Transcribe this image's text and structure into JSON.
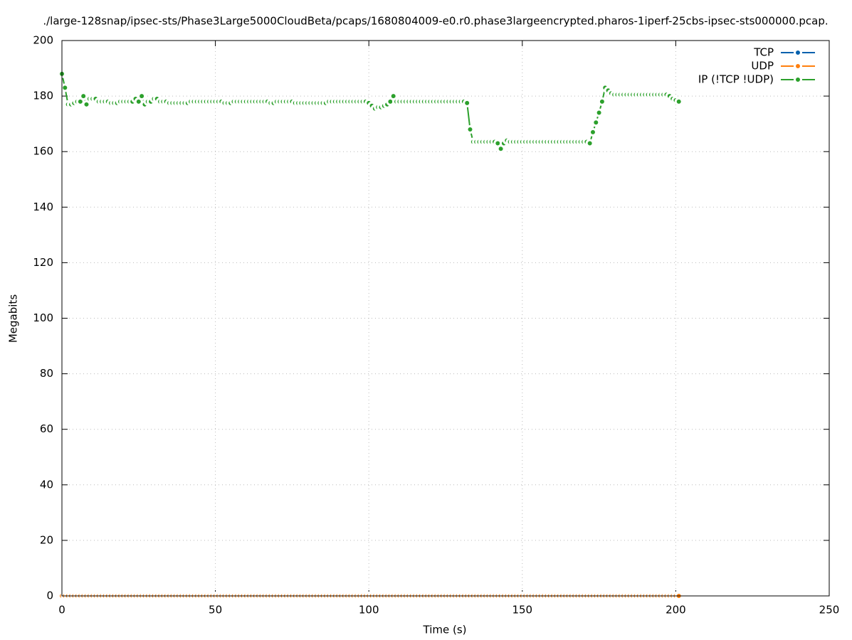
{
  "chart_data": {
    "type": "line",
    "title": "./large-128snap/ipsec-sts/Phase3Large5000CloudBeta/pcaps/1680804009-e0.r0.phase3largeencrypted.pharos-1iperf-25cbs-ipsec-sts000000.pcap.",
    "x_label": "Time (s)",
    "y_label": "Megabits",
    "xlim": [
      0,
      250
    ],
    "xticks": [
      0,
      50,
      100,
      150,
      200,
      250
    ],
    "ylim": [
      0,
      200
    ],
    "yticks": [
      0,
      20,
      40,
      60,
      80,
      100,
      120,
      140,
      160,
      180,
      200
    ],
    "grid": true,
    "legend": "top-right",
    "x": [
      0,
      1,
      2,
      3,
      4,
      5,
      6,
      7,
      8,
      9,
      10,
      11,
      12,
      13,
      14,
      15,
      16,
      17,
      18,
      19,
      20,
      21,
      22,
      23,
      24,
      25,
      26,
      27,
      28,
      29,
      30,
      31,
      32,
      33,
      34,
      35,
      36,
      37,
      38,
      39,
      40,
      41,
      42,
      43,
      44,
      45,
      46,
      47,
      48,
      49,
      50,
      51,
      52,
      53,
      54,
      55,
      56,
      57,
      58,
      59,
      60,
      61,
      62,
      63,
      64,
      65,
      66,
      67,
      68,
      69,
      70,
      71,
      72,
      73,
      74,
      75,
      76,
      77,
      78,
      79,
      80,
      81,
      82,
      83,
      84,
      85,
      86,
      87,
      88,
      89,
      90,
      91,
      92,
      93,
      94,
      95,
      96,
      97,
      98,
      99,
      100,
      101,
      102,
      103,
      104,
      105,
      106,
      107,
      108,
      109,
      110,
      111,
      112,
      113,
      114,
      115,
      116,
      117,
      118,
      119,
      120,
      121,
      122,
      123,
      124,
      125,
      126,
      127,
      128,
      129,
      130,
      131,
      132,
      133,
      134,
      135,
      136,
      137,
      138,
      139,
      140,
      141,
      142,
      143,
      144,
      145,
      146,
      147,
      148,
      149,
      150,
      151,
      152,
      153,
      154,
      155,
      156,
      157,
      158,
      159,
      160,
      161,
      162,
      163,
      164,
      165,
      166,
      167,
      168,
      169,
      170,
      171,
      172,
      173,
      174,
      175,
      176,
      177,
      178,
      179,
      180,
      181,
      182,
      183,
      184,
      185,
      186,
      187,
      188,
      189,
      190,
      191,
      192,
      193,
      194,
      195,
      196,
      197,
      198,
      199,
      200,
      201
    ],
    "series": [
      {
        "name": "TCP",
        "color": "#0060ad",
        "values": [
          0,
          0,
          0,
          0,
          0,
          0,
          0,
          0,
          0,
          0,
          0,
          0,
          0,
          0,
          0,
          0,
          0,
          0,
          0,
          0,
          0,
          0,
          0,
          0,
          0,
          0,
          0,
          0,
          0,
          0,
          0,
          0,
          0,
          0,
          0,
          0,
          0,
          0,
          0,
          0,
          0,
          0,
          0,
          0,
          0,
          0,
          0,
          0,
          0,
          0,
          0,
          0,
          0,
          0,
          0,
          0,
          0,
          0,
          0,
          0,
          0,
          0,
          0,
          0,
          0,
          0,
          0,
          0,
          0,
          0,
          0,
          0,
          0,
          0,
          0,
          0,
          0,
          0,
          0,
          0,
          0,
          0,
          0,
          0,
          0,
          0,
          0,
          0,
          0,
          0,
          0,
          0,
          0,
          0,
          0,
          0,
          0,
          0,
          0,
          0,
          0,
          0,
          0,
          0,
          0,
          0,
          0,
          0,
          0,
          0,
          0,
          0,
          0,
          0,
          0,
          0,
          0,
          0,
          0,
          0,
          0,
          0,
          0,
          0,
          0,
          0,
          0,
          0,
          0,
          0,
          0,
          0,
          0,
          0,
          0,
          0,
          0,
          0,
          0,
          0,
          0,
          0,
          0,
          0,
          0,
          0,
          0,
          0,
          0,
          0,
          0,
          0,
          0,
          0,
          0,
          0,
          0,
          0,
          0,
          0,
          0,
          0,
          0,
          0,
          0,
          0,
          0,
          0,
          0,
          0,
          0,
          0,
          0,
          0,
          0,
          0,
          0,
          0,
          0,
          0,
          0,
          0,
          0,
          0,
          0,
          0,
          0,
          0,
          0,
          0,
          0,
          0,
          0,
          0,
          0,
          0,
          0,
          0,
          0,
          0,
          0,
          0
        ]
      },
      {
        "name": "UDP",
        "color": "#ff7f0e",
        "values": [
          0,
          0,
          0,
          0,
          0,
          0,
          0,
          0,
          0,
          0,
          0,
          0,
          0,
          0,
          0,
          0,
          0,
          0,
          0,
          0,
          0,
          0,
          0,
          0,
          0,
          0,
          0,
          0,
          0,
          0,
          0,
          0,
          0,
          0,
          0,
          0,
          0,
          0,
          0,
          0,
          0,
          0,
          0,
          0,
          0,
          0,
          0,
          0,
          0,
          0,
          0,
          0,
          0,
          0,
          0,
          0,
          0,
          0,
          0,
          0,
          0,
          0,
          0,
          0,
          0,
          0,
          0,
          0,
          0,
          0,
          0,
          0,
          0,
          0,
          0,
          0,
          0,
          0,
          0,
          0,
          0,
          0,
          0,
          0,
          0,
          0,
          0,
          0,
          0,
          0,
          0,
          0,
          0,
          0,
          0,
          0,
          0,
          0,
          0,
          0,
          0,
          0,
          0,
          0,
          0,
          0,
          0,
          0,
          0,
          0,
          0,
          0,
          0,
          0,
          0,
          0,
          0,
          0,
          0,
          0,
          0,
          0,
          0,
          0,
          0,
          0,
          0,
          0,
          0,
          0,
          0,
          0,
          0,
          0,
          0,
          0,
          0,
          0,
          0,
          0,
          0,
          0,
          0,
          0,
          0,
          0,
          0,
          0,
          0,
          0,
          0,
          0,
          0,
          0,
          0,
          0,
          0,
          0,
          0,
          0,
          0,
          0,
          0,
          0,
          0,
          0,
          0,
          0,
          0,
          0,
          0,
          0,
          0,
          0,
          0,
          0,
          0,
          0,
          0,
          0,
          0,
          0,
          0,
          0,
          0,
          0,
          0,
          0,
          0,
          0,
          0,
          0,
          0,
          0,
          0,
          0,
          0,
          0,
          0,
          0,
          0,
          0
        ]
      },
      {
        "name": "IP (!TCP  !UDP)",
        "color": "#2ca02c",
        "values": [
          188,
          183,
          177,
          177,
          177.5,
          178,
          178,
          180,
          177,
          179,
          179,
          179,
          178,
          178,
          178,
          178,
          177.5,
          177.5,
          177.5,
          178,
          178,
          178,
          178,
          178,
          179,
          178,
          180,
          177,
          178,
          178,
          179,
          179,
          178,
          178,
          178,
          177.5,
          177.5,
          177.5,
          177.5,
          177.5,
          177.5,
          177.5,
          178,
          178,
          178,
          178,
          178,
          178,
          178,
          178,
          178,
          178,
          178,
          177.5,
          177.5,
          177.5,
          178,
          178,
          178,
          178,
          178,
          178,
          178,
          178,
          178,
          178,
          178,
          178,
          177.5,
          177.5,
          178,
          178,
          178,
          178,
          178,
          178,
          177.5,
          177.5,
          177.5,
          177.5,
          177.5,
          177.5,
          177.5,
          177.5,
          177.5,
          177.5,
          177.5,
          178,
          178,
          178,
          178,
          178,
          178,
          178,
          178,
          178,
          178,
          178,
          178,
          178,
          177.5,
          176.5,
          175.5,
          176,
          176,
          176.5,
          177,
          178,
          180,
          178,
          178,
          178,
          178,
          178,
          178,
          178,
          178,
          178,
          178,
          178,
          178,
          178,
          178,
          178,
          178,
          178,
          178,
          178,
          178,
          178,
          178,
          178,
          177.5,
          168,
          163.5,
          163.5,
          163.5,
          163.5,
          163.5,
          163.5,
          163.5,
          163.5,
          163,
          161,
          163,
          164,
          163.5,
          163.5,
          163.5,
          163.5,
          163.5,
          163.5,
          163.5,
          163.5,
          163.5,
          163.5,
          163.5,
          163.5,
          163.5,
          163.5,
          163.5,
          163.5,
          163.5,
          163.5,
          163.5,
          163.5,
          163.5,
          163.5,
          163.5,
          163.5,
          163.5,
          163.5,
          163,
          167,
          170.5,
          174,
          178,
          183,
          182,
          181,
          180.5,
          180.5,
          180.5,
          180.5,
          180.5,
          180.5,
          180.5,
          180.5,
          180.5,
          180.5,
          180.5,
          180.5,
          180.5,
          180.5,
          180.5,
          180.5,
          180.5,
          180.5,
          180,
          179,
          178.5,
          178
        ]
      }
    ]
  }
}
